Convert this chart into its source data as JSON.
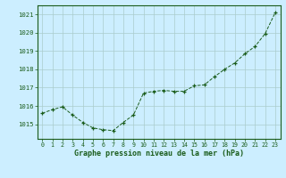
{
  "x": [
    0,
    1,
    2,
    3,
    4,
    5,
    6,
    7,
    8,
    9,
    10,
    11,
    12,
    13,
    14,
    15,
    16,
    17,
    18,
    19,
    20,
    21,
    22,
    23
  ],
  "y": [
    1015.6,
    1015.8,
    1015.95,
    1015.5,
    1015.1,
    1014.8,
    1014.7,
    1014.65,
    1015.1,
    1015.5,
    1016.7,
    1016.8,
    1016.85,
    1016.8,
    1016.8,
    1017.1,
    1017.15,
    1017.6,
    1018.0,
    1018.35,
    1018.85,
    1019.25,
    1019.95,
    1021.1
  ],
  "bg_color": "#cceeff",
  "line_color": "#1a5c1a",
  "marker_color": "#1a5c1a",
  "grid_color": "#aacccc",
  "axis_label_color": "#1a5c1a",
  "tick_label_color": "#1a5c1a",
  "xlabel": "Graphe pression niveau de la mer (hPa)",
  "ylim": [
    1014.2,
    1021.5
  ],
  "yticks": [
    1015,
    1016,
    1017,
    1018,
    1019,
    1020,
    1021
  ],
  "xtick_labels": [
    "0",
    "1",
    "2",
    "3",
    "4",
    "5",
    "6",
    "7",
    "8",
    "9",
    "10",
    "11",
    "12",
    "13",
    "14",
    "15",
    "16",
    "17",
    "18",
    "19",
    "20",
    "21",
    "22",
    "23"
  ],
  "xlim": [
    -0.5,
    23.5
  ]
}
